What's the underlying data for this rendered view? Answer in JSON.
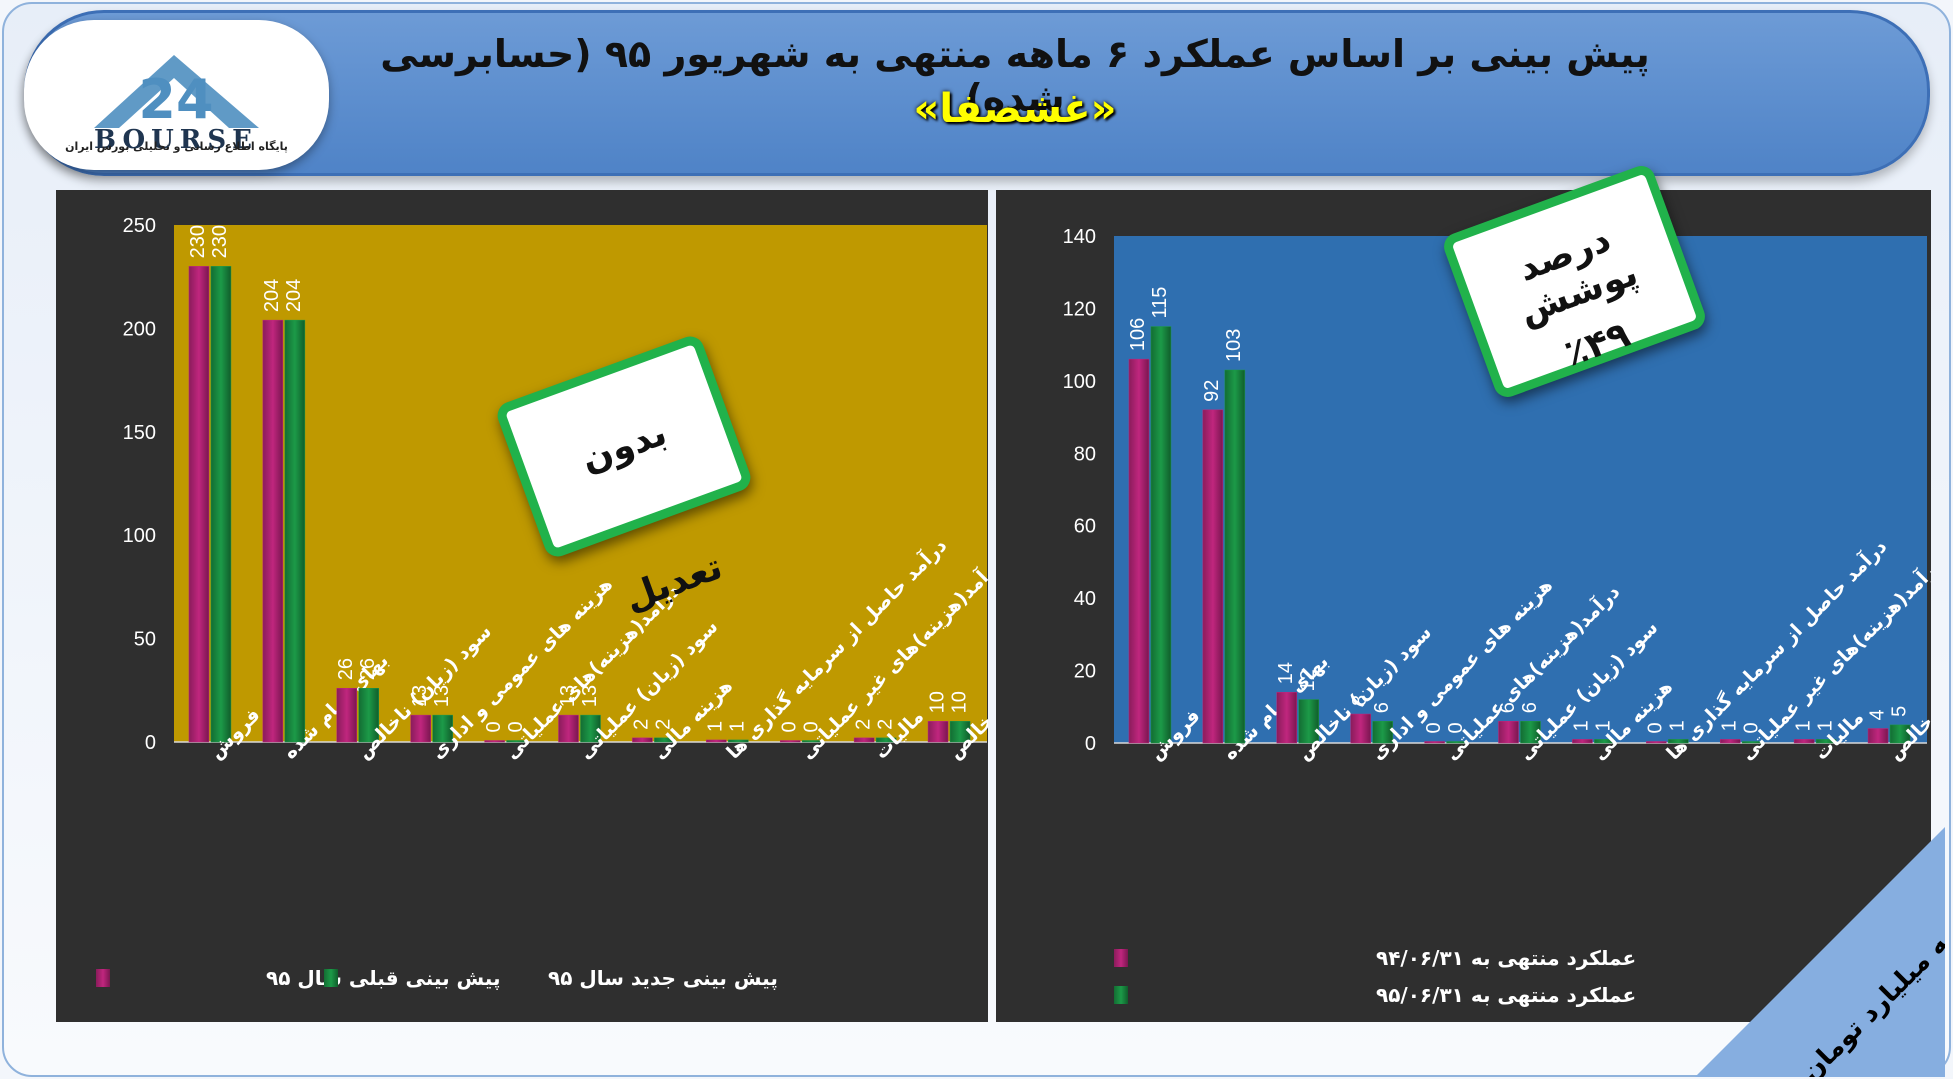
{
  "header": {
    "title": "پیش بینی بر اساس عملکرد ۶ ماهه منتهی به شهریور ۹۵ (حسابرسی شده)",
    "subtitle": "«غشصفا»"
  },
  "logo": {
    "number": "24",
    "brand": "BOURSE",
    "tagline": "پایگاه اطلاع رسانی و تحلیلی بورس ایران"
  },
  "badges": {
    "left": "بدون تعدیل",
    "right_line1": "درصد پوشش",
    "right_line2": "٪۴۹"
  },
  "units_label": "ارقام به میلیارد تومان",
  "colors": {
    "magenta": "#c0267e",
    "green": "#1c9a48",
    "left_plot_bg": "#bf9900",
    "right_plot_bg": "#2f6fb0",
    "panel_bg": "#2f2f2f",
    "badge_border": "#21b24b"
  },
  "chart_data": [
    {
      "type": "bar",
      "categories": [
        "فروش",
        "بهای تمام شده",
        "سود (زیان) ناخالص",
        "هزینه های عمومی و اداری",
        "درآمد(هزینه)های عملیاتی",
        "سود (زیان) عملیاتی",
        "هزینه مالی",
        "درآمد حاصل از سرمایه گذاری ها",
        "درآمد(هزینه)های غیر عملیاتی",
        "مالیات",
        "سود خالص"
      ],
      "series": [
        {
          "name": "پیش بینی قبلی سال ۹۵",
          "values": [
            230,
            204,
            26,
            13,
            0,
            13,
            2,
            1,
            0,
            2,
            10
          ]
        },
        {
          "name": "پیش بینی جدید سال ۹۵",
          "values": [
            230,
            204,
            26,
            13,
            0,
            13,
            2,
            1,
            0,
            2,
            10
          ]
        }
      ],
      "ylim": [
        0,
        250
      ],
      "yticks": [
        0,
        50,
        100,
        150,
        200,
        250
      ],
      "grid": false,
      "legend_position": "bottom"
    },
    {
      "type": "bar",
      "categories": [
        "فروش",
        "بهای تمام شده",
        "سود (زیان) ناخالص",
        "هزینه های عمومی و اداری",
        "درآمد(هزینه)های عملیاتی",
        "سود (زیان) عملیاتی",
        "هزینه مالی",
        "درآمد حاصل از سرمایه گذاری ها",
        "درآمد(هزینه)های غیر عملیاتی",
        "مالیات",
        "سود خالص"
      ],
      "series": [
        {
          "name": "عملکرد منتهی به ۹۴/۰۶/۳۱",
          "values": [
            106,
            92,
            14,
            8,
            0,
            6,
            1,
            0,
            1,
            1,
            4
          ]
        },
        {
          "name": "عملکرد منتهی به ۹۵/۰۶/۳۱",
          "values": [
            115,
            103,
            12,
            6,
            0,
            6,
            1,
            1,
            0,
            1,
            5
          ]
        }
      ],
      "ylim": [
        0,
        140
      ],
      "yticks": [
        0,
        20,
        40,
        60,
        80,
        100,
        120,
        140
      ],
      "grid": false,
      "legend_position": "bottom-left"
    }
  ]
}
